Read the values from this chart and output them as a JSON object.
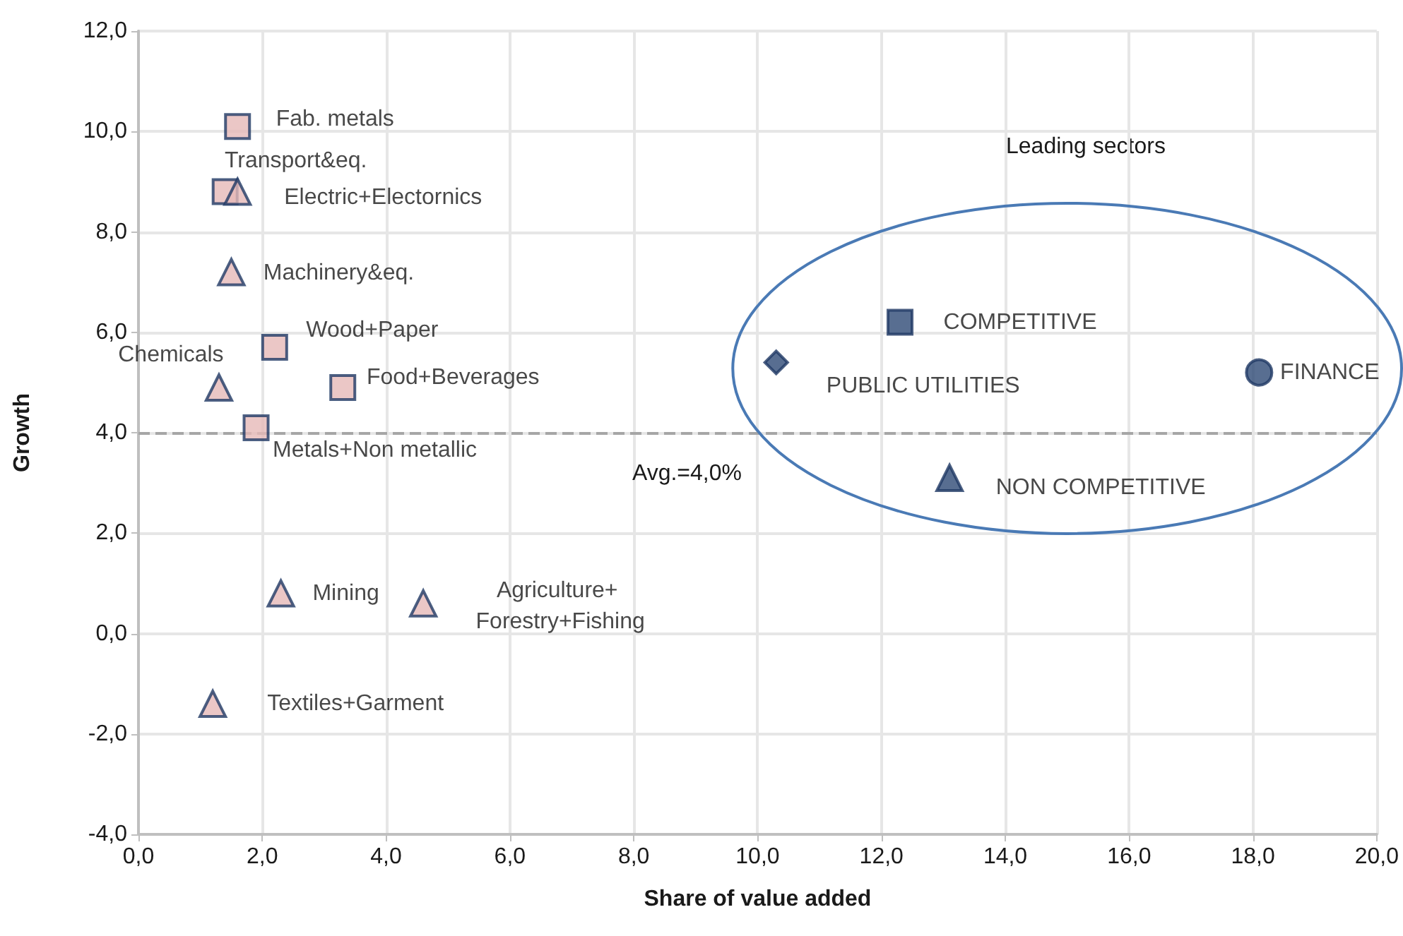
{
  "chart_data": {
    "type": "scatter",
    "xlabel": "Share of value added",
    "ylabel": "Growth",
    "xlim": [
      0,
      20
    ],
    "xticks": [
      {
        "value": 0,
        "label": "0,0"
      },
      {
        "value": 2,
        "label": "2,0"
      },
      {
        "value": 4,
        "label": "4,0"
      },
      {
        "value": 6,
        "label": "6,0"
      },
      {
        "value": 8,
        "label": "8,0"
      },
      {
        "value": 10,
        "label": "10,0"
      },
      {
        "value": 12,
        "label": "12,0"
      },
      {
        "value": 14,
        "label": "14,0"
      },
      {
        "value": 16,
        "label": "16,0"
      },
      {
        "value": 18,
        "label": "18,0"
      },
      {
        "value": 20,
        "label": "20,0"
      }
    ],
    "ylim": [
      -4,
      12
    ],
    "yticks": [
      {
        "value": -4,
        "label": "-4,0"
      },
      {
        "value": -2,
        "label": "-2,0"
      },
      {
        "value": 0,
        "label": "0,0"
      },
      {
        "value": 2,
        "label": "2,0"
      },
      {
        "value": 4,
        "label": "4,0"
      },
      {
        "value": 6,
        "label": "6,0"
      },
      {
        "value": 8,
        "label": "8,0"
      },
      {
        "value": 10,
        "label": "10,0"
      },
      {
        "value": 12,
        "label": "12,0"
      }
    ],
    "grid": true,
    "legend": false,
    "ref_lines": [
      {
        "axis": "y",
        "value": 4,
        "label": "Avg.=4,0%",
        "color": "#a6a6a6",
        "line_style": "dashed"
      }
    ],
    "annotations": [
      "Leading sectors"
    ],
    "series": [
      {
        "name": "Fab. metals",
        "color": "#e6b9b8",
        "marker": "square",
        "x": [
          1.6
        ],
        "values": [
          10.1
        ]
      },
      {
        "name": "Transport&eq.",
        "color": "#e6b9b8",
        "marker": "square",
        "x": [
          1.4
        ],
        "values": [
          8.8
        ]
      },
      {
        "name": "Electric+Electornics",
        "color": "#e6b9b8",
        "marker": "triangle",
        "x": [
          1.6
        ],
        "values": [
          8.8
        ]
      },
      {
        "name": "Machinery&eq.",
        "color": "#e6b9b8",
        "marker": "triangle",
        "x": [
          1.5
        ],
        "values": [
          7.2
        ]
      },
      {
        "name": "Wood+Paper",
        "color": "#e6b9b8",
        "marker": "square",
        "x": [
          2.2
        ],
        "values": [
          5.7
        ]
      },
      {
        "name": "Chemicals",
        "color": "#e6b9b8",
        "marker": "triangle",
        "x": [
          1.3
        ],
        "values": [
          4.9
        ]
      },
      {
        "name": "Food+Beverages",
        "color": "#e6b9b8",
        "marker": "square",
        "x": [
          3.3
        ],
        "values": [
          4.9
        ]
      },
      {
        "name": "Metals+Non metallic",
        "color": "#e6b9b8",
        "marker": "square",
        "x": [
          1.9
        ],
        "values": [
          4.1
        ]
      },
      {
        "name": "Mining",
        "color": "#e6b9b8",
        "marker": "triangle",
        "x": [
          2.3
        ],
        "values": [
          0.8
        ]
      },
      {
        "name": "Agriculture+ Forestry+Fishing",
        "color": "#e6b9b8",
        "marker": "triangle",
        "x": [
          4.6
        ],
        "values": [
          0.6
        ]
      },
      {
        "name": "Textiles+Garment",
        "color": "#e6b9b8",
        "marker": "triangle",
        "x": [
          1.2
        ],
        "values": [
          -1.4
        ]
      },
      {
        "name": "PUBLIC UTILITIES",
        "color": "#2e4a75",
        "marker": "diamond",
        "x": [
          10.3
        ],
        "values": [
          5.4
        ]
      },
      {
        "name": "COMPETITIVE",
        "color": "#2e4a75",
        "marker": "square",
        "x": [
          12.3
        ],
        "values": [
          6.2
        ]
      },
      {
        "name": "FINANCE",
        "color": "#2e4a75",
        "marker": "circle",
        "x": [
          18.1
        ],
        "values": [
          5.2
        ]
      },
      {
        "name": "NON COMPETITIVE",
        "color": "#2e4a75",
        "marker": "triangle",
        "x": [
          13.1
        ],
        "values": [
          3.1
        ]
      }
    ]
  }
}
